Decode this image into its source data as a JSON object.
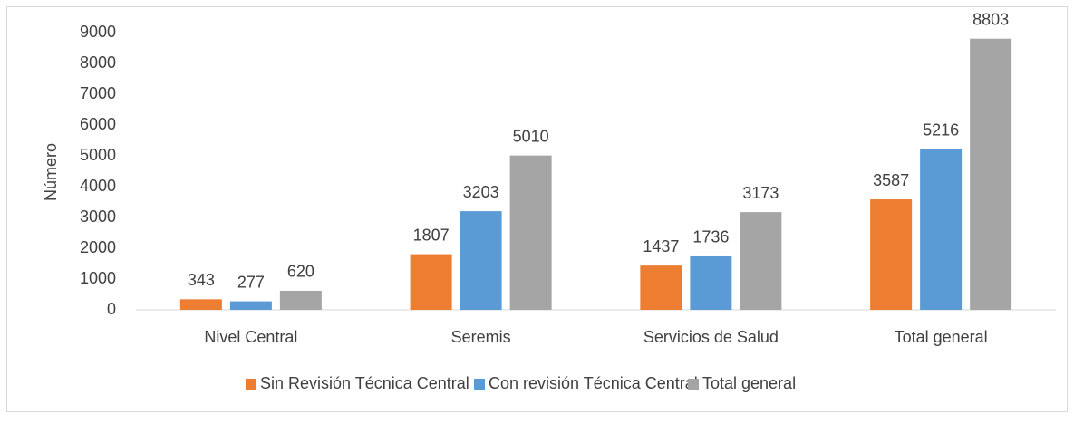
{
  "chart_data": {
    "type": "bar",
    "y_label": "Número",
    "categories": [
      "Nivel Central",
      "Seremis",
      "Servicios de Salud",
      "Total general"
    ],
    "series": [
      {
        "name": "Sin Revisión Técnica Central",
        "color": "#ed7d31",
        "values": [
          343,
          1807,
          1437,
          3587
        ]
      },
      {
        "name": "Con revisión Técnica Central",
        "color": "#5b9bd5",
        "values": [
          277,
          3203,
          1736,
          5216
        ]
      },
      {
        "name": "Total general",
        "color": "#a5a5a5",
        "values": [
          620,
          5010,
          3173,
          8803
        ]
      }
    ],
    "ylim": [
      0,
      9000
    ],
    "yticks": [
      0,
      1000,
      2000,
      3000,
      4000,
      5000,
      6000,
      7000,
      8000,
      9000
    ],
    "legend": "bottom"
  }
}
